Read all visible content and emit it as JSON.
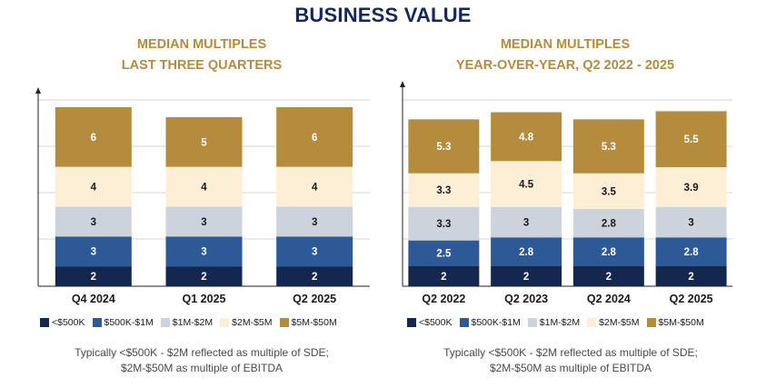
{
  "page_title": "BUSINESS VALUE",
  "chart_data": [
    {
      "type": "bar",
      "stacked": true,
      "title_lines": [
        "MEDIAN MULTIPLES",
        "LAST THREE QUARTERS"
      ],
      "categories": [
        "Q4 2024",
        "Q1 2025",
        "Q2 2025"
      ],
      "series": [
        {
          "name": "<$500K",
          "color": "#14284f",
          "values": [
            2,
            2,
            2
          ]
        },
        {
          "name": "$500K-$1M",
          "color": "#2d5a96",
          "values": [
            3,
            3,
            3
          ]
        },
        {
          "name": "$1M-$2M",
          "color": "#cdd3dc",
          "values": [
            3,
            3,
            3
          ]
        },
        {
          "name": "$2M-$5M",
          "color": "#fdefd5",
          "values": [
            4,
            4,
            4
          ]
        },
        {
          "name": "$5M-$50M",
          "color": "#b58c3e",
          "values": [
            6,
            5,
            6
          ]
        }
      ],
      "ylim": [
        0,
        19
      ],
      "grid": true,
      "legend_position": "bottom",
      "footnote_lines": [
        "Typically <$500K - $2M reflected as multiple of SDE;",
        "$2M-$50M as multiple of EBITDA"
      ]
    },
    {
      "type": "bar",
      "stacked": true,
      "title_lines": [
        "MEDIAN MULTIPLES",
        "YEAR-OVER-YEAR, Q2 2022 - 2025"
      ],
      "categories": [
        "Q2 2022",
        "Q2 2023",
        "Q2 2024",
        "Q2 2025"
      ],
      "series": [
        {
          "name": "<$500K",
          "color": "#14284f",
          "values": [
            2,
            2,
            2,
            2
          ]
        },
        {
          "name": "$500K-$1M",
          "color": "#2d5a96",
          "values": [
            2.5,
            2.8,
            2.8,
            2.8
          ]
        },
        {
          "name": "$1M-$2M",
          "color": "#cdd3dc",
          "values": [
            3.3,
            3,
            2.8,
            3
          ]
        },
        {
          "name": "$2M-$5M",
          "color": "#fdefd5",
          "values": [
            3.3,
            4.5,
            3.5,
            3.9
          ]
        },
        {
          "name": "$5M-$50M",
          "color": "#b58c3e",
          "values": [
            5.3,
            4.8,
            5.3,
            5.5
          ]
        }
      ],
      "ylim": [
        0,
        19.2
      ],
      "grid": true,
      "legend_position": "bottom",
      "footnote_lines": [
        "Typically <$500K - $2M reflected as multiple of SDE;",
        "$2M-$50M as multiple of EBITDA"
      ]
    }
  ]
}
